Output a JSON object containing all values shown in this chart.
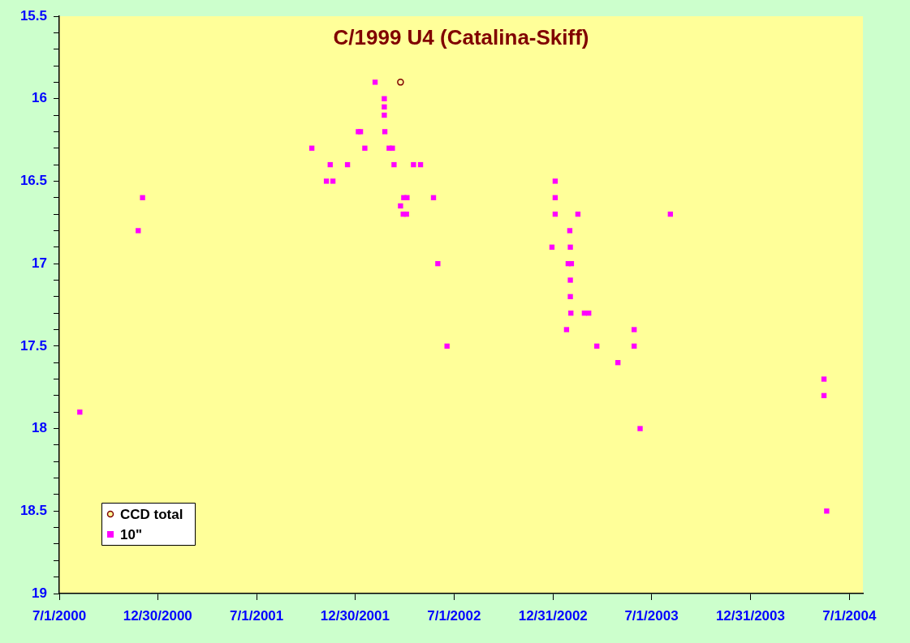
{
  "chart_data": {
    "type": "scatter",
    "title": "C/1999 U4 (Catalina-Skiff)",
    "xlim": [
      "2000-07-01",
      "2004-07-26"
    ],
    "xticks": [
      {
        "value": "2000-07-01",
        "label": "7/1/2000"
      },
      {
        "value": "2000-12-30",
        "label": "12/30/2000"
      },
      {
        "value": "2001-07-01",
        "label": "7/1/2001"
      },
      {
        "value": "2001-12-30",
        "label": "12/30/2001"
      },
      {
        "value": "2002-07-01",
        "label": "7/1/2002"
      },
      {
        "value": "2002-12-31",
        "label": "12/31/2002"
      },
      {
        "value": "2003-07-01",
        "label": "7/1/2003"
      },
      {
        "value": "2003-12-31",
        "label": "12/31/2003"
      },
      {
        "value": "2004-07-01",
        "label": "7/1/2004"
      }
    ],
    "ylim": [
      19,
      15.5
    ],
    "yticks": [
      15.5,
      {
        "value": 15.6,
        "label": null
      },
      {
        "value": 15.7,
        "label": null
      },
      {
        "value": 15.8,
        "label": null
      },
      {
        "value": 15.9,
        "label": null
      },
      16,
      {
        "value": 16.1,
        "label": null
      },
      {
        "value": 16.2,
        "label": null
      },
      {
        "value": 16.3,
        "label": null
      },
      {
        "value": 16.4,
        "label": null
      },
      16.5,
      {
        "value": 16.6,
        "label": null
      },
      {
        "value": 16.7,
        "label": null
      },
      {
        "value": 16.8,
        "label": null
      },
      {
        "value": 16.9,
        "label": null
      },
      17,
      {
        "value": 17.1,
        "label": null
      },
      {
        "value": 17.2,
        "label": null
      },
      {
        "value": 17.3,
        "label": null
      },
      {
        "value": 17.4,
        "label": null
      },
      17.5,
      {
        "value": 17.6,
        "label": null
      },
      {
        "value": 17.7,
        "label": null
      },
      {
        "value": 17.8,
        "label": null
      },
      {
        "value": 17.9,
        "label": null
      },
      18,
      {
        "value": 18.1,
        "label": null
      },
      {
        "value": 18.2,
        "label": null
      },
      {
        "value": 18.3,
        "label": null
      },
      {
        "value": 18.4,
        "label": null
      },
      18.5,
      {
        "value": 18.6,
        "label": null
      },
      {
        "value": 18.7,
        "label": null
      },
      {
        "value": 18.8,
        "label": null
      },
      {
        "value": 18.9,
        "label": null
      },
      19
    ],
    "grid": false,
    "legend": "bottom left",
    "series": [
      {
        "name": "CCD total",
        "color": "#800000",
        "marker": "circle",
        "x": [
          "2002-03-24"
        ],
        "values": [
          15.9
        ]
      },
      {
        "name": "10\"",
        "color": "#ff00ff",
        "marker": "square",
        "x": [
          "2000-08-08",
          "2000-11-24",
          "2000-12-02",
          "2001-10-11",
          "2001-11-07",
          "2001-11-14",
          "2001-11-19",
          "2001-12-16",
          "2002-01-05",
          "2002-01-09",
          "2002-01-17",
          "2002-02-05",
          "2002-02-22",
          "2002-02-22",
          "2002-02-22",
          "2002-02-23",
          "2002-03-03",
          "2002-03-09",
          "2002-03-12",
          "2002-03-24",
          "2002-03-29",
          "2002-04-04",
          "2002-03-30",
          "2002-04-05",
          "2002-04-17",
          "2002-04-30",
          "2002-05-24",
          "2002-06-01",
          "2002-06-18",
          "2002-12-29",
          "2003-01-04",
          "2003-01-04",
          "2003-01-04",
          "2003-01-25",
          "2003-01-28",
          "2003-01-31",
          "2003-02-01",
          "2003-02-01",
          "2003-02-01",
          "2003-02-02",
          "2003-02-03",
          "2003-02-15",
          "2003-02-27",
          "2003-03-07",
          "2003-03-22",
          "2003-04-30",
          "2003-05-30",
          "2003-05-30",
          "2003-06-10",
          "2003-08-05",
          "2004-05-15",
          "2004-05-15",
          "2004-05-20"
        ],
        "values": [
          17.9,
          16.8,
          16.6,
          16.3,
          16.5,
          16.4,
          16.5,
          16.4,
          16.2,
          16.2,
          16.3,
          15.9,
          16.0,
          16.05,
          16.1,
          16.2,
          16.3,
          16.3,
          16.4,
          16.65,
          16.7,
          16.7,
          16.6,
          16.6,
          16.4,
          16.4,
          16.6,
          17.0,
          17.5,
          16.9,
          16.5,
          16.6,
          16.7,
          17.4,
          17.0,
          16.8,
          16.9,
          17.1,
          17.2,
          17.3,
          17.0,
          16.7,
          17.3,
          17.3,
          17.5,
          17.6,
          17.4,
          17.5,
          18.0,
          16.7,
          17.7,
          17.8,
          18.5
        ]
      }
    ]
  }
}
